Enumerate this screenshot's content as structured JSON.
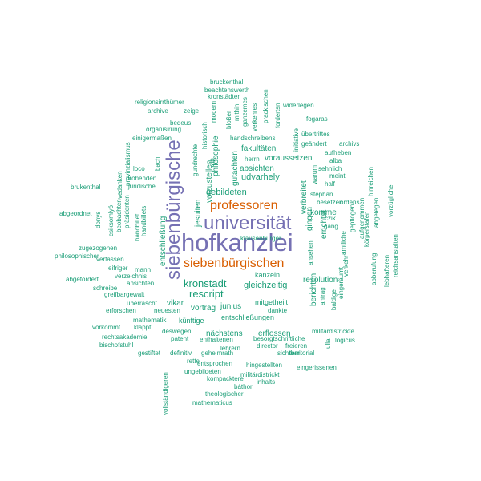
{
  "colors": {
    "teal": "#1b9e77",
    "purple": "#7570b3",
    "orange": "#d95f02"
  },
  "words": [
    {
      "text": "hofkanzlei",
      "color": "purple"
    },
    {
      "text": "universität",
      "color": "purple"
    },
    {
      "text": "siebenbürgische",
      "color": "purple"
    },
    {
      "text": "siebenbürgischen",
      "color": "orange"
    },
    {
      "text": "professoren",
      "color": "orange"
    },
    {
      "text": "kronstadt",
      "color": "teal"
    },
    {
      "text": "rescript",
      "color": "teal"
    },
    {
      "text": "gleichzeitig",
      "color": "teal"
    },
    {
      "text": "udvarhely",
      "color": "teal"
    },
    {
      "text": "gebildeten",
      "color": "teal"
    },
    {
      "text": "fakultäten",
      "color": "teal"
    },
    {
      "text": "absichten",
      "color": "teal"
    },
    {
      "text": "voraussetzen",
      "color": "teal"
    },
    {
      "text": "jesuiten",
      "color": "teal"
    },
    {
      "text": "philosophie",
      "color": "teal"
    },
    {
      "text": "gutachten",
      "color": "teal"
    },
    {
      "text": "vorzustellen",
      "color": "teal"
    },
    {
      "text": "entschließung",
      "color": "teal"
    },
    {
      "text": "junius",
      "color": "teal"
    },
    {
      "text": "vortrag",
      "color": "teal"
    },
    {
      "text": "vikar",
      "color": "teal"
    },
    {
      "text": "künftige",
      "color": "teal"
    },
    {
      "text": "mitgetheilt",
      "color": "teal"
    },
    {
      "text": "entschließungen",
      "color": "teal"
    },
    {
      "text": "nächstens",
      "color": "teal"
    },
    {
      "text": "erflossen",
      "color": "teal"
    },
    {
      "text": "resolution",
      "color": "teal"
    },
    {
      "text": "kanzeln",
      "color": "teal"
    },
    {
      "text": "komme",
      "color": "teal"
    },
    {
      "text": "gingen",
      "color": "teal"
    },
    {
      "text": "verbreitet",
      "color": "teal"
    },
    {
      "text": "errichtet",
      "color": "teal"
    },
    {
      "text": "berichten",
      "color": "teal"
    },
    {
      "text": "dankte",
      "color": "teal"
    },
    {
      "text": "bruckenthal",
      "color": "teal"
    },
    {
      "text": "beachtenswerth",
      "color": "teal"
    },
    {
      "text": "kronstädter",
      "color": "teal"
    },
    {
      "text": "religionsirrthümer",
      "color": "teal"
    },
    {
      "text": "archive",
      "color": "teal"
    },
    {
      "text": "zeige",
      "color": "teal"
    },
    {
      "text": "bedeus",
      "color": "teal"
    },
    {
      "text": "organisirung",
      "color": "teal"
    },
    {
      "text": "einigermaßen",
      "color": "teal"
    },
    {
      "text": "widerlegen",
      "color": "teal"
    },
    {
      "text": "fogaras",
      "color": "teal"
    },
    {
      "text": "übertrittes",
      "color": "teal"
    },
    {
      "text": "geändert",
      "color": "teal"
    },
    {
      "text": "archivs",
      "color": "teal"
    },
    {
      "text": "aufheben",
      "color": "teal"
    },
    {
      "text": "sehnlich",
      "color": "teal"
    },
    {
      "text": "alba",
      "color": "teal"
    },
    {
      "text": "meint",
      "color": "teal"
    },
    {
      "text": "half",
      "color": "teal"
    },
    {
      "text": "stephan",
      "color": "teal"
    },
    {
      "text": "besetzen",
      "color": "teal"
    },
    {
      "text": "ordens",
      "color": "teal"
    },
    {
      "text": "czik",
      "color": "teal"
    },
    {
      "text": "gang",
      "color": "teal"
    },
    {
      "text": "handschreibens",
      "color": "teal"
    },
    {
      "text": "herrn",
      "color": "teal"
    },
    {
      "text": "brukenthal",
      "color": "teal"
    },
    {
      "text": "abgeordnet",
      "color": "teal"
    },
    {
      "text": "präsidenten",
      "color": "teal"
    },
    {
      "text": "beobachten",
      "color": "teal"
    },
    {
      "text": "juridische",
      "color": "teal"
    },
    {
      "text": "drohenden",
      "color": "teal"
    },
    {
      "text": "loco",
      "color": "teal"
    },
    {
      "text": "bach",
      "color": "teal"
    },
    {
      "text": "handbillets",
      "color": "teal"
    },
    {
      "text": "handbillet",
      "color": "teal"
    },
    {
      "text": "zugezogenen",
      "color": "teal"
    },
    {
      "text": "philosophischer",
      "color": "teal"
    },
    {
      "text": "verfassen",
      "color": "teal"
    },
    {
      "text": "eifriger",
      "color": "teal"
    },
    {
      "text": "mann",
      "color": "teal"
    },
    {
      "text": "abgefordert",
      "color": "teal"
    },
    {
      "text": "verzeichnis",
      "color": "teal"
    },
    {
      "text": "ansichten",
      "color": "teal"
    },
    {
      "text": "schreibe",
      "color": "teal"
    },
    {
      "text": "greifbargewalt",
      "color": "teal"
    },
    {
      "text": "überrascht",
      "color": "teal"
    },
    {
      "text": "erforschen",
      "color": "teal"
    },
    {
      "text": "neuesten",
      "color": "teal"
    },
    {
      "text": "mathematik",
      "color": "teal"
    },
    {
      "text": "klappt",
      "color": "teal"
    },
    {
      "text": "vorkommt",
      "color": "teal"
    },
    {
      "text": "deswegen",
      "color": "teal"
    },
    {
      "text": "rechtsakademie",
      "color": "teal"
    },
    {
      "text": "patent",
      "color": "teal"
    },
    {
      "text": "enthaltenen",
      "color": "teal"
    },
    {
      "text": "bischofstuhl",
      "color": "teal"
    },
    {
      "text": "lehrern",
      "color": "teal"
    },
    {
      "text": "gestiftet",
      "color": "teal"
    },
    {
      "text": "definitiv",
      "color": "teal"
    },
    {
      "text": "geheimrath",
      "color": "teal"
    },
    {
      "text": "rette",
      "color": "teal"
    },
    {
      "text": "entsprochen",
      "color": "teal"
    },
    {
      "text": "ungebildeten",
      "color": "teal"
    },
    {
      "text": "kompacktere",
      "color": "teal"
    },
    {
      "text": "theologischer",
      "color": "teal"
    },
    {
      "text": "mathematicus",
      "color": "teal"
    },
    {
      "text": "besorgtschriftliche",
      "color": "teal"
    },
    {
      "text": "director",
      "color": "teal"
    },
    {
      "text": "sichtbar",
      "color": "teal"
    },
    {
      "text": "territorial",
      "color": "teal"
    },
    {
      "text": "freieren",
      "color": "teal"
    },
    {
      "text": "hingestellten",
      "color": "teal"
    },
    {
      "text": "eingerissenen",
      "color": "teal"
    },
    {
      "text": "militärdistrickt",
      "color": "teal"
    },
    {
      "text": "inhalts",
      "color": "teal"
    },
    {
      "text": "báthori",
      "color": "teal"
    },
    {
      "text": "militärdistrickte",
      "color": "teal"
    },
    {
      "text": "logicus",
      "color": "teal"
    },
    {
      "text": "ulla",
      "color": "teal"
    },
    {
      "text": "vollständigeren",
      "color": "teal"
    },
    {
      "text": "vedanken",
      "color": "teal"
    },
    {
      "text": "provinzialismus",
      "color": "teal"
    },
    {
      "text": "csiksomlyó",
      "color": "teal"
    },
    {
      "text": "donys",
      "color": "teal"
    },
    {
      "text": "historisch",
      "color": "teal"
    },
    {
      "text": "modern",
      "color": "teal"
    },
    {
      "text": "gundrechte",
      "color": "teal"
    },
    {
      "text": "alp",
      "color": "teal"
    },
    {
      "text": "bloßer",
      "color": "teal"
    },
    {
      "text": "mithin",
      "color": "teal"
    },
    {
      "text": "ganzemes",
      "color": "teal"
    },
    {
      "text": "verkehres",
      "color": "teal"
    },
    {
      "text": "prackischen",
      "color": "teal"
    },
    {
      "text": "fordertsn",
      "color": "teal"
    },
    {
      "text": "initiative",
      "color": "teal"
    },
    {
      "text": "warum",
      "color": "teal"
    },
    {
      "text": "ansehen",
      "color": "teal"
    },
    {
      "text": "antrag",
      "color": "teal"
    },
    {
      "text": "baldige",
      "color": "teal"
    },
    {
      "text": "eingeräumt",
      "color": "teal"
    },
    {
      "text": "verkehr",
      "color": "teal"
    },
    {
      "text": "amtliche",
      "color": "teal"
    },
    {
      "text": "körperstafen",
      "color": "teal"
    },
    {
      "text": "aufgenommen",
      "color": "teal"
    },
    {
      "text": "gepflogen",
      "color": "teal"
    },
    {
      "text": "abberufung",
      "color": "teal"
    },
    {
      "text": "hinreichen",
      "color": "teal"
    },
    {
      "text": "abgelegen",
      "color": "teal"
    },
    {
      "text": "vorzügliche",
      "color": "teal"
    },
    {
      "text": "lebhafteren",
      "color": "teal"
    },
    {
      "text": "reichsanstalten",
      "color": "teal"
    },
    {
      "text": "klausenburger",
      "color": "teal"
    }
  ]
}
